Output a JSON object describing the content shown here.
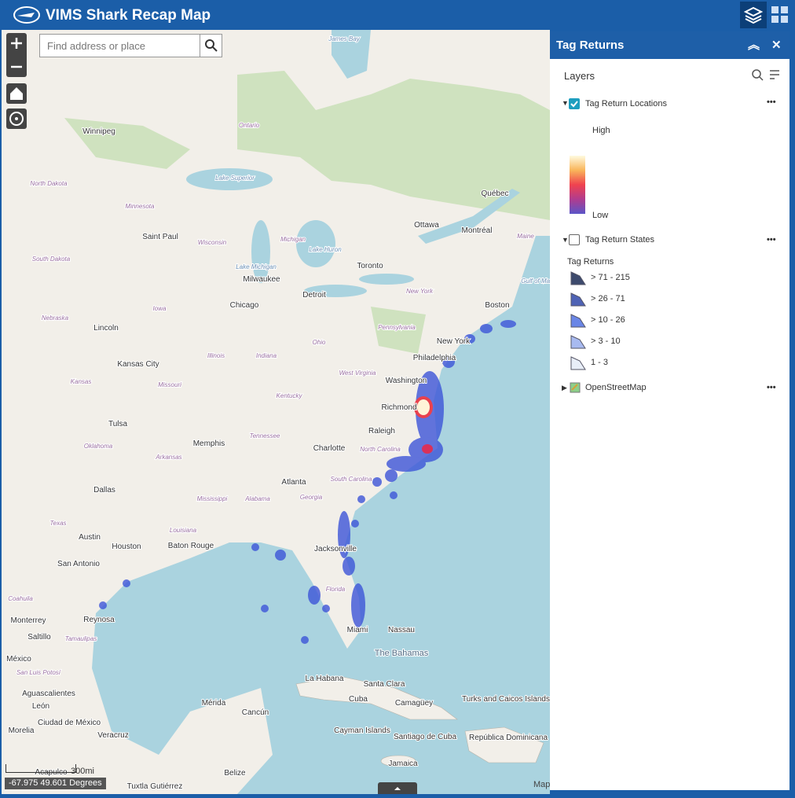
{
  "header": {
    "title": "VIMS Shark Recap Map"
  },
  "search": {
    "placeholder": "Find address or place"
  },
  "map": {
    "labels": [
      "Winnipeg",
      "Saint Paul",
      "Milwaukee",
      "Chicago",
      "Detroit",
      "Toronto",
      "Ottawa",
      "Montréal",
      "Québec",
      "Boston",
      "New York",
      "Philadelphia",
      "Washington",
      "Richmond",
      "Raleigh",
      "Charlotte",
      "Atlanta",
      "Memphis",
      "Lincoln",
      "Kansas City",
      "Tulsa",
      "Dallas",
      "Austin",
      "Houston",
      "San Antonio",
      "Baton Rouge",
      "Jacksonville",
      "Miami",
      "Nassau",
      "Monterrey",
      "Reynosa",
      "Saltillo",
      "La Habana",
      "Santa Clara",
      "Camagüey",
      "Mérida",
      "Cancún",
      "Veracruz",
      "Santiago de Cuba",
      "Acapulco",
      "Morelia",
      "León",
      "Aguascalientes",
      "Ciudad de México",
      "Tuxtla Gutiérrez",
      "Ontario",
      "North Dakota",
      "Minnesota",
      "South Dakota",
      "Wisconsin",
      "Michigan",
      "Iowa",
      "Nebraska",
      "Illinois",
      "Indiana",
      "Ohio",
      "Pennsylvania",
      "New York",
      "Kansas",
      "Missouri",
      "Kentucky",
      "West Virginia",
      "Tennessee",
      "North Carolina",
      "Oklahoma",
      "Arkansas",
      "South Carolina",
      "Mississippi",
      "Alabama",
      "Georgia",
      "Texas",
      "Louisiana",
      "Florida",
      "Maine",
      "Coahuila",
      "Tamaulipas",
      "México",
      "San Luis Potosí",
      "Cuba",
      "Cayman Islands",
      "Jamaica",
      "Turks and Caicos Islands",
      "República Dominicana",
      "Belize",
      "James Bay",
      "Lake Superior",
      "Lake Michigan",
      "Lake Huron",
      "Gulf of Maine",
      "The Bahamas"
    ],
    "coordinates": "-67.975 49.601 Degrees",
    "scale": "300mi",
    "attribution": "Map"
  },
  "panel": {
    "title": "Tag Returns",
    "heading": "Layers",
    "layers": [
      {
        "name": "Tag Return Locations",
        "high": "High",
        "low": "Low"
      },
      {
        "name": "Tag Return States",
        "legend_title": "Tag Returns",
        "classes": [
          "> 71 - 215",
          "> 26 - 71",
          "> 10 - 26",
          "> 3 - 10",
          "1 - 3"
        ]
      },
      {
        "name": "OpenStreetMap"
      }
    ]
  }
}
